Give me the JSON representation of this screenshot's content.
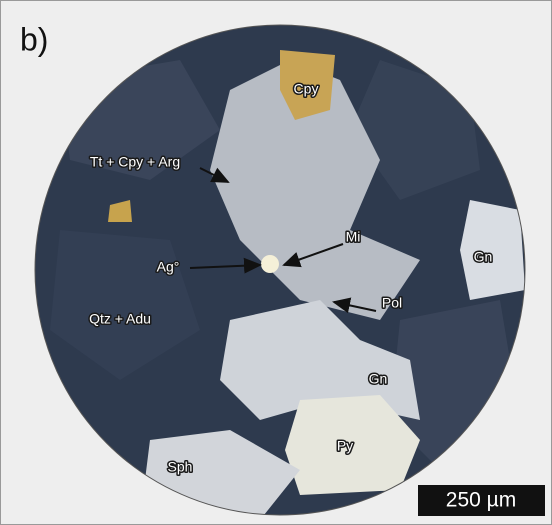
{
  "panel_label": "b)",
  "labels": [
    "Cpy",
    "Tt + Cpy + Arg",
    "Mi",
    "Ag°",
    "Gn",
    "Qtz + Adu",
    "Pol",
    "Gn",
    "Py",
    "Sph"
  ],
  "scale_bar": "250 µm"
}
